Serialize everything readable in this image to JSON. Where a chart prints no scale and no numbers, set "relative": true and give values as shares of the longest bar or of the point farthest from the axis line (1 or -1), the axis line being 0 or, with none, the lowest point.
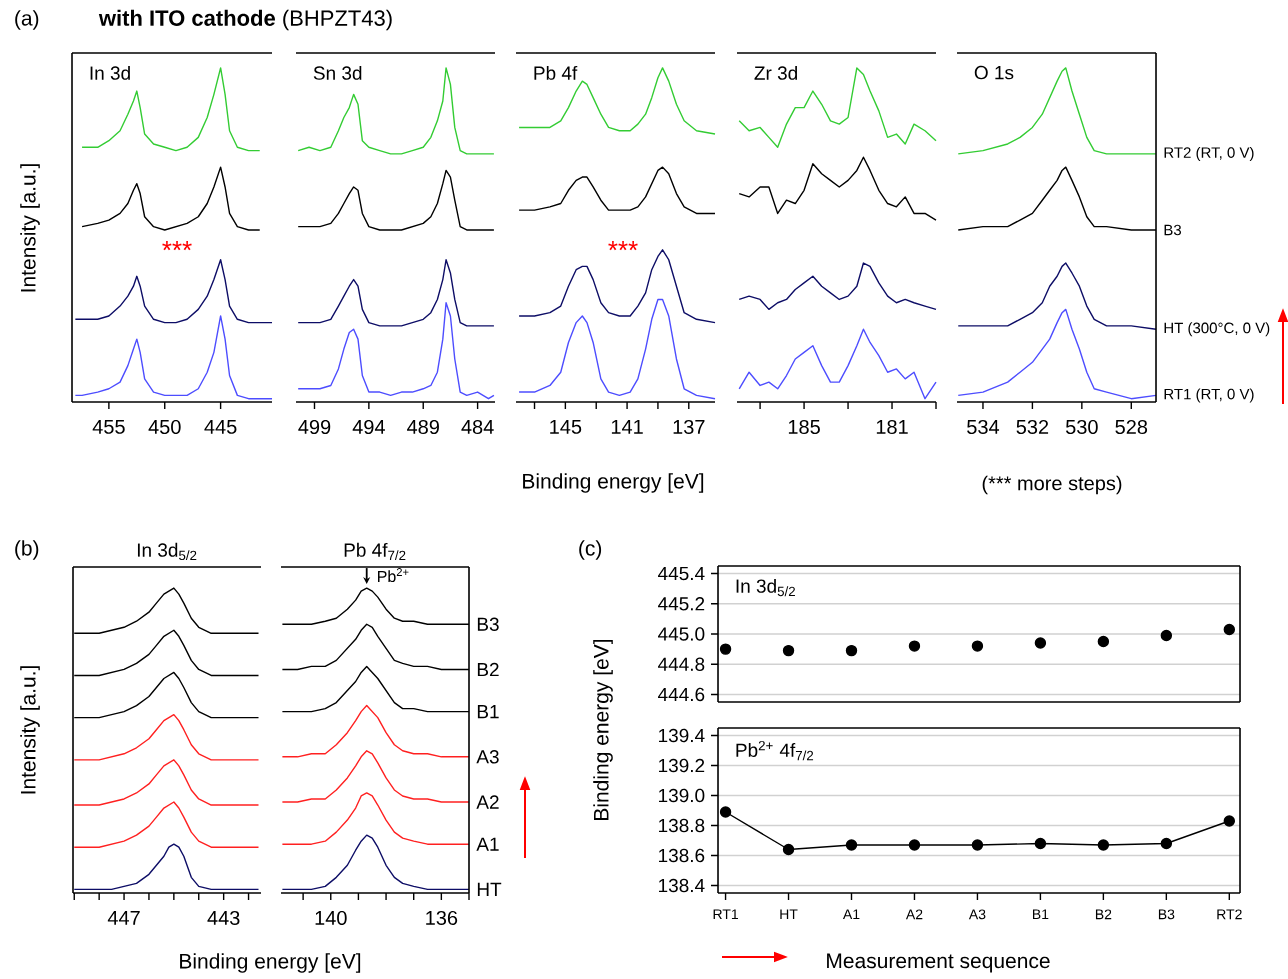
{
  "chart_data": [
    {
      "type": "line",
      "relative": true,
      "title": "In 3d",
      "ylabel": "Intensity [a.u.]",
      "annotations": [
        "(a)",
        "**with ITO cathode** (BHPZT43)",
        "***"
      ],
      "xlim": [
        458.3,
        440.4
      ],
      "xticks": [
        455,
        450,
        445
      ],
      "x": [
        458.0,
        457.4,
        456,
        455,
        454,
        453.3,
        452.8,
        452.5,
        452.2,
        451.8,
        451,
        450,
        449,
        448,
        447,
        446.2,
        445.6,
        445.0,
        444.6,
        444.2,
        443.5,
        442.5,
        441.5,
        440.4
      ],
      "series": [
        {
          "color": "#33cc33",
          "values": [
            null,
            0.76,
            0.76,
            0.78,
            0.81,
            0.86,
            0.9,
            0.93,
            0.88,
            0.8,
            0.77,
            0.76,
            0.75,
            0.76,
            0.79,
            0.85,
            0.92,
            1.0,
            0.92,
            0.81,
            0.76,
            0.75,
            0.75,
            null
          ]
        },
        {
          "color": "#000000",
          "values": [
            null,
            0.52,
            0.53,
            0.54,
            0.56,
            0.59,
            0.63,
            0.65,
            0.62,
            0.55,
            0.52,
            0.51,
            0.52,
            0.53,
            0.55,
            0.59,
            0.64,
            0.7,
            0.64,
            0.56,
            0.52,
            0.51,
            0.51,
            null
          ]
        },
        {
          "color": "#0d0d66",
          "values": [
            0.24,
            0.24,
            0.24,
            0.25,
            0.28,
            0.31,
            0.34,
            0.37,
            0.34,
            0.28,
            0.24,
            0.23,
            0.23,
            0.24,
            0.27,
            0.31,
            0.36,
            0.42,
            0.36,
            0.28,
            0.24,
            0.23,
            0.23,
            0.23
          ]
        },
        {
          "color": "#4d4dff",
          "values": [
            0.01,
            0.01,
            0.02,
            0.03,
            0.05,
            0.1,
            0.15,
            0.18,
            0.14,
            0.06,
            0.02,
            0.01,
            0.01,
            0.01,
            0.03,
            0.08,
            0.14,
            0.25,
            0.18,
            0.07,
            0.01,
            0,
            0,
            0
          ]
        }
      ]
    },
    {
      "type": "line",
      "relative": true,
      "title": "Sn 3d",
      "xlim": [
        500.7,
        482.4
      ],
      "xticks": [
        499,
        494,
        489,
        484
      ],
      "x": [
        500.5,
        499.5,
        498.5,
        497.5,
        496.8,
        496.3,
        495.8,
        495.4,
        495.0,
        494.6,
        494,
        493,
        492,
        491,
        490,
        489,
        488.3,
        487.7,
        487.2,
        486.9,
        486.5,
        486.1,
        485.6,
        485,
        484,
        483,
        482.5
      ],
      "series": [
        {
          "color": "#33cc33",
          "values": [
            0.75,
            0.76,
            0.75,
            0.76,
            0.81,
            0.85,
            0.88,
            0.92,
            0.89,
            0.78,
            0.76,
            0.75,
            0.74,
            0.74,
            0.75,
            0.76,
            0.79,
            0.84,
            0.9,
            1.0,
            0.95,
            0.82,
            0.75,
            0.74,
            0.74,
            0.74,
            0.74
          ]
        },
        {
          "color": "#000000",
          "values": [
            0.52,
            0.52,
            0.52,
            0.53,
            0.56,
            0.59,
            0.62,
            0.64,
            0.63,
            0.56,
            0.52,
            0.51,
            0.51,
            0.51,
            0.52,
            0.53,
            0.55,
            0.59,
            0.65,
            0.69,
            0.67,
            0.6,
            0.52,
            0.51,
            0.51,
            0.51,
            0.51
          ]
        },
        {
          "color": "#0d0d66",
          "values": [
            0.23,
            0.23,
            0.23,
            0.24,
            0.28,
            0.31,
            0.34,
            0.36,
            0.34,
            0.27,
            0.23,
            0.22,
            0.22,
            0.22,
            0.23,
            0.24,
            0.26,
            0.3,
            0.36,
            0.42,
            0.38,
            0.3,
            0.23,
            0.22,
            0.22,
            0.22,
            0.22
          ]
        },
        {
          "color": "#4d4dff",
          "values": [
            0.03,
            0.03,
            0.03,
            0.04,
            0.09,
            0.15,
            0.2,
            0.21,
            0.18,
            0.07,
            0.02,
            0.02,
            0.01,
            0.02,
            0.02,
            0.03,
            0.04,
            0.08,
            0.18,
            0.29,
            0.25,
            0.12,
            0.02,
            0.01,
            0.02,
            0,
            0.01
          ]
        }
      ]
    },
    {
      "type": "line",
      "relative": true,
      "title": "Pb 4f",
      "xlabel": "Binding energy [eV]",
      "annotations": [
        "***"
      ],
      "xlim": [
        148.2,
        135.3
      ],
      "xticks": [
        {
          "value": 147,
          "label": null
        },
        145,
        {
          "value": 143,
          "label": null
        },
        141,
        {
          "value": 139,
          "label": null
        },
        137
      ],
      "x": [
        148,
        147,
        146,
        145.3,
        144.8,
        144.3,
        143.9,
        143.6,
        143.2,
        142.7,
        142.2,
        141.5,
        140.8,
        140.3,
        139.8,
        139.4,
        139.0,
        138.7,
        138.3,
        137.8,
        137.3,
        136.5,
        135.3
      ],
      "series": [
        {
          "color": "#33cc33",
          "values": [
            0.82,
            0.82,
            0.82,
            0.84,
            0.88,
            0.93,
            0.96,
            0.95,
            0.91,
            0.86,
            0.82,
            0.81,
            0.81,
            0.83,
            0.86,
            0.91,
            0.97,
            1.0,
            0.96,
            0.89,
            0.84,
            0.81,
            0.8
          ]
        },
        {
          "color": "#000000",
          "values": [
            0.57,
            0.57,
            0.58,
            0.59,
            0.63,
            0.66,
            0.67,
            0.67,
            0.64,
            0.6,
            0.57,
            0.57,
            0.57,
            0.58,
            0.61,
            0.65,
            0.69,
            0.7,
            0.68,
            0.62,
            0.58,
            0.56,
            0.56
          ]
        },
        {
          "color": "#0d0d66",
          "values": [
            0.25,
            0.25,
            0.26,
            0.28,
            0.34,
            0.39,
            0.4,
            0.4,
            0.36,
            0.29,
            0.26,
            0.25,
            0.25,
            0.28,
            0.32,
            0.39,
            0.43,
            0.45,
            0.42,
            0.34,
            0.26,
            0.24,
            0.23
          ]
        },
        {
          "color": "#4d4dff",
          "values": [
            0.02,
            0.02,
            0.04,
            0.08,
            0.17,
            0.23,
            0.25,
            0.23,
            0.17,
            0.06,
            0.02,
            0.01,
            0.02,
            0.06,
            0.15,
            0.24,
            0.3,
            0.3,
            0.25,
            0.12,
            0.03,
            0.01,
            0
          ]
        }
      ]
    },
    {
      "type": "line",
      "relative": true,
      "title": "Zr 3d",
      "xlim": [
        188.05,
        179.0
      ],
      "xticks": [
        {
          "value": 187,
          "label": null
        },
        185,
        {
          "value": 183,
          "label": null
        },
        181,
        {
          "value": 179,
          "label": null
        }
      ],
      "x": [
        187.95,
        187.5,
        187,
        186.6,
        186.2,
        185.8,
        185.4,
        185,
        184.6,
        184.2,
        183.8,
        183.4,
        183,
        182.6,
        182.3,
        182,
        181.6,
        181.2,
        180.8,
        180.4,
        180,
        179.5,
        179.0
      ],
      "series": [
        {
          "color": "#33cc33",
          "values": [
            0.84,
            0.81,
            0.82,
            0.79,
            0.76,
            0.83,
            0.88,
            0.88,
            0.93,
            0.89,
            0.84,
            0.83,
            0.85,
            1.0,
            0.98,
            0.93,
            0.87,
            0.79,
            0.8,
            0.77,
            0.83,
            0.81,
            0.78
          ]
        },
        {
          "color": "#000000",
          "values": [
            0.62,
            0.61,
            0.64,
            0.64,
            0.56,
            0.6,
            0.59,
            0.63,
            0.71,
            0.68,
            0.66,
            0.64,
            0.66,
            0.69,
            0.73,
            0.69,
            0.63,
            0.59,
            0.58,
            0.61,
            0.56,
            0.56,
            0.54
          ]
        },
        {
          "color": "#0d0d66",
          "values": [
            0.3,
            0.31,
            0.3,
            0.27,
            0.29,
            0.3,
            0.33,
            0.35,
            0.37,
            0.34,
            0.32,
            0.3,
            0.31,
            0.34,
            0.41,
            0.4,
            0.35,
            0.31,
            0.29,
            0.3,
            0.29,
            0.28,
            0.27
          ]
        },
        {
          "color": "#4d4dff",
          "values": [
            0.03,
            0.08,
            0.04,
            0.05,
            0.03,
            0.07,
            0.12,
            0.14,
            0.16,
            0.1,
            0.05,
            0.05,
            0.1,
            0.16,
            0.21,
            0.17,
            0.13,
            0.08,
            0.09,
            0.06,
            0.08,
            0,
            0.05
          ]
        }
      ]
    },
    {
      "type": "line",
      "relative": true,
      "title": "O 1s",
      "annotations": [
        "(*** more steps)"
      ],
      "xlim": [
        535.05,
        527.0
      ],
      "xticks": [
        534,
        532,
        530,
        528
      ],
      "x": [
        535,
        534,
        533,
        532.5,
        532,
        531.6,
        531.3,
        531.0,
        530.8,
        530.65,
        530.4,
        530.1,
        529.8,
        529.5,
        529,
        528,
        527
      ],
      "series": [
        {
          "name": "RT2 (RT, 0 V)",
          "color": "#33cc33",
          "values": [
            0.74,
            0.75,
            0.77,
            0.79,
            0.82,
            0.86,
            0.91,
            0.96,
            0.99,
            1.0,
            0.93,
            0.86,
            0.79,
            0.75,
            0.74,
            0.74,
            0.74
          ]
        },
        {
          "name": "B3",
          "color": "#000000",
          "values": [
            0.51,
            0.52,
            0.52,
            0.54,
            0.56,
            0.6,
            0.63,
            0.66,
            0.69,
            0.7,
            0.66,
            0.61,
            0.55,
            0.52,
            0.52,
            0.51,
            0.51
          ]
        },
        {
          "name": "HT (300°C, 0 V)",
          "color": "#0d0d66",
          "values": [
            0.22,
            0.22,
            0.22,
            0.24,
            0.26,
            0.29,
            0.34,
            0.37,
            0.4,
            0.41,
            0.38,
            0.34,
            0.28,
            0.24,
            0.22,
            0.22,
            0.21
          ]
        },
        {
          "name": "RT1 (RT, 0 V)",
          "color": "#4d4dff",
          "values": [
            0.01,
            0.02,
            0.05,
            0.08,
            0.11,
            0.15,
            0.18,
            0.23,
            0.26,
            0.27,
            0.21,
            0.15,
            0.08,
            0.03,
            0.02,
            0,
            0.01
          ]
        }
      ]
    },
    {
      "type": "line",
      "relative": true,
      "title": "In 3d$_{5/2}$",
      "ylabel": "Intensity [a.u.]",
      "xlabel": "Binding energy [eV]",
      "annotations": [
        "(b)"
      ],
      "xlim": [
        449.05,
        441.5
      ],
      "xticks": [
        {
          "value": 449,
          "label": null
        },
        {
          "value": 448,
          "label": null
        },
        447,
        {
          "value": 446,
          "label": null
        },
        {
          "value": 445,
          "label": null
        },
        {
          "value": 444,
          "label": null
        },
        443,
        {
          "value": 442,
          "label": null
        }
      ],
      "x": [
        449,
        448.5,
        448,
        447.5,
        447,
        446.5,
        446,
        445.7,
        445.4,
        445.2,
        445.0,
        444.8,
        444.6,
        444.3,
        444.0,
        443.5,
        443,
        442.5,
        441.6
      ],
      "series": [
        {
          "color": "#000000",
          "values": [
            0.85,
            0.85,
            0.85,
            0.86,
            0.87,
            0.89,
            0.92,
            0.95,
            0.98,
            0.99,
            1.0,
            0.98,
            0.95,
            0.9,
            0.87,
            0.85,
            0.85,
            0.85,
            0.85
          ]
        },
        {
          "color": "#000000",
          "values": [
            0.71,
            0.71,
            0.71,
            0.72,
            0.73,
            0.75,
            0.78,
            0.81,
            0.84,
            0.85,
            0.86,
            0.84,
            0.81,
            0.76,
            0.73,
            0.71,
            0.71,
            0.71,
            0.71
          ]
        },
        {
          "color": "#000000",
          "values": [
            0.57,
            0.57,
            0.57,
            0.58,
            0.59,
            0.61,
            0.64,
            0.67,
            0.7,
            0.71,
            0.72,
            0.7,
            0.67,
            0.62,
            0.59,
            0.57,
            0.57,
            0.57,
            0.57
          ]
        },
        {
          "color": "#ff2020",
          "values": [
            0.43,
            0.43,
            0.43,
            0.44,
            0.45,
            0.47,
            0.5,
            0.53,
            0.56,
            0.57,
            0.58,
            0.56,
            0.53,
            0.48,
            0.45,
            0.43,
            0.43,
            0.43,
            0.43
          ]
        },
        {
          "color": "#ff2020",
          "values": [
            0.28,
            0.28,
            0.28,
            0.29,
            0.3,
            0.32,
            0.35,
            0.38,
            0.41,
            0.42,
            0.43,
            0.41,
            0.38,
            0.33,
            0.3,
            0.28,
            0.28,
            0.28,
            0.28
          ]
        },
        {
          "color": "#ff2020",
          "values": [
            0.14,
            0.14,
            0.14,
            0.15,
            0.16,
            0.18,
            0.21,
            0.24,
            0.27,
            0.28,
            0.29,
            0.27,
            0.24,
            0.19,
            0.16,
            0.14,
            0.14,
            0.14,
            0.14
          ]
        },
        {
          "color": "#0d0d66",
          "values": [
            0,
            0,
            0,
            0,
            0.01,
            0.02,
            0.05,
            0.08,
            0.11,
            0.14,
            0.15,
            0.14,
            0.11,
            0.04,
            0.01,
            0,
            0,
            0,
            0
          ]
        }
      ]
    },
    {
      "type": "line",
      "relative": true,
      "title": "Pb 4f$_{7/2}$",
      "annotations": [
        {
          "text": "Pb$^{2+}$",
          "x": 138.7,
          "y": 1.0
        }
      ],
      "xlim": [
        141.8,
        135.0
      ],
      "xticks": [
        {
          "value": 141,
          "label": null
        },
        140,
        {
          "value": 139,
          "label": null
        },
        {
          "value": 138,
          "label": null
        },
        {
          "value": 137,
          "label": null
        },
        136,
        {
          "value": 135,
          "label": null
        }
      ],
      "x": [
        141.75,
        141.2,
        140.7,
        140.2,
        139.8,
        139.4,
        139.1,
        138.9,
        138.7,
        138.5,
        138.3,
        138.0,
        137.7,
        137.4,
        137.0,
        136.5,
        136.0,
        135.5,
        135.0
      ],
      "series": [
        {
          "name": "B3",
          "color": "#000000",
          "values": [
            0.88,
            0.88,
            0.88,
            0.89,
            0.9,
            0.93,
            0.96,
            0.99,
            1.0,
            0.99,
            0.97,
            0.93,
            0.9,
            0.89,
            0.89,
            0.88,
            0.88,
            0.88,
            0.88
          ]
        },
        {
          "name": "B2",
          "color": "#000000",
          "values": [
            0.73,
            0.73,
            0.74,
            0.74,
            0.76,
            0.8,
            0.83,
            0.86,
            0.88,
            0.87,
            0.84,
            0.8,
            0.76,
            0.75,
            0.74,
            0.74,
            0.73,
            0.73,
            0.73
          ]
        },
        {
          "name": "B1",
          "color": "#000000",
          "values": [
            0.59,
            0.59,
            0.59,
            0.6,
            0.62,
            0.66,
            0.69,
            0.72,
            0.74,
            0.72,
            0.7,
            0.66,
            0.62,
            0.6,
            0.6,
            0.59,
            0.59,
            0.59,
            0.59
          ]
        },
        {
          "name": "A3",
          "color": "#ff2020",
          "values": [
            0.44,
            0.44,
            0.45,
            0.45,
            0.48,
            0.52,
            0.56,
            0.59,
            0.61,
            0.59,
            0.57,
            0.52,
            0.48,
            0.46,
            0.45,
            0.45,
            0.44,
            0.44,
            0.44
          ]
        },
        {
          "name": "A2",
          "color": "#ff2020",
          "values": [
            0.29,
            0.29,
            0.3,
            0.3,
            0.33,
            0.37,
            0.41,
            0.44,
            0.46,
            0.45,
            0.42,
            0.37,
            0.33,
            0.31,
            0.3,
            0.3,
            0.29,
            0.29,
            0.29
          ]
        },
        {
          "name": "A1",
          "color": "#ff2020",
          "values": [
            0.15,
            0.15,
            0.15,
            0.16,
            0.19,
            0.23,
            0.27,
            0.31,
            0.32,
            0.31,
            0.28,
            0.23,
            0.19,
            0.17,
            0.16,
            0.15,
            0.15,
            0.15,
            0.15
          ]
        },
        {
          "name": "HT",
          "color": "#0d0d66",
          "values": [
            0,
            0,
            0,
            0.01,
            0.04,
            0.08,
            0.13,
            0.16,
            0.18,
            0.17,
            0.14,
            0.08,
            0.04,
            0.02,
            0.01,
            0,
            0,
            0,
            0
          ]
        }
      ]
    },
    {
      "type": "scatter",
      "title": "In 3d$_{5/2}$",
      "ylabel": "Binding energy [eV]",
      "annotations": [
        "(c)"
      ],
      "tick_labels": "y",
      "grid": "y",
      "marker": "circle",
      "categories": [
        null,
        null,
        null,
        null,
        null,
        null,
        null,
        null,
        null
      ],
      "ylim": [
        444.55,
        445.45
      ],
      "yticks": [
        445.4,
        445.2,
        {
          "value": 445,
          "label": "445.0"
        },
        444.8,
        444.6
      ],
      "series": [
        {
          "color": "#000000",
          "values": [
            444.9,
            444.89,
            444.89,
            444.92,
            444.92,
            444.94,
            444.95,
            444.99,
            445.03
          ]
        }
      ]
    },
    {
      "type": "line",
      "title": "Pb$^{2+}$ 4f$_{7/2}$",
      "xlabel": "Measurement sequence",
      "grid": "y",
      "marker": "circle",
      "line_style": "solid",
      "categories": [
        "RT1",
        "HT",
        "A1",
        "A2",
        "A3",
        "B1",
        "B2",
        "B3",
        "RT2"
      ],
      "ylim": [
        138.35,
        139.45
      ],
      "yticks": [
        139.4,
        139.2,
        {
          "value": 139,
          "label": "139.0"
        },
        138.8,
        138.6,
        138.4
      ],
      "series": [
        {
          "color": "#000000",
          "values": [
            138.89,
            138.64,
            138.67,
            138.67,
            138.67,
            138.68,
            138.67,
            138.68,
            138.83
          ]
        }
      ]
    }
  ]
}
